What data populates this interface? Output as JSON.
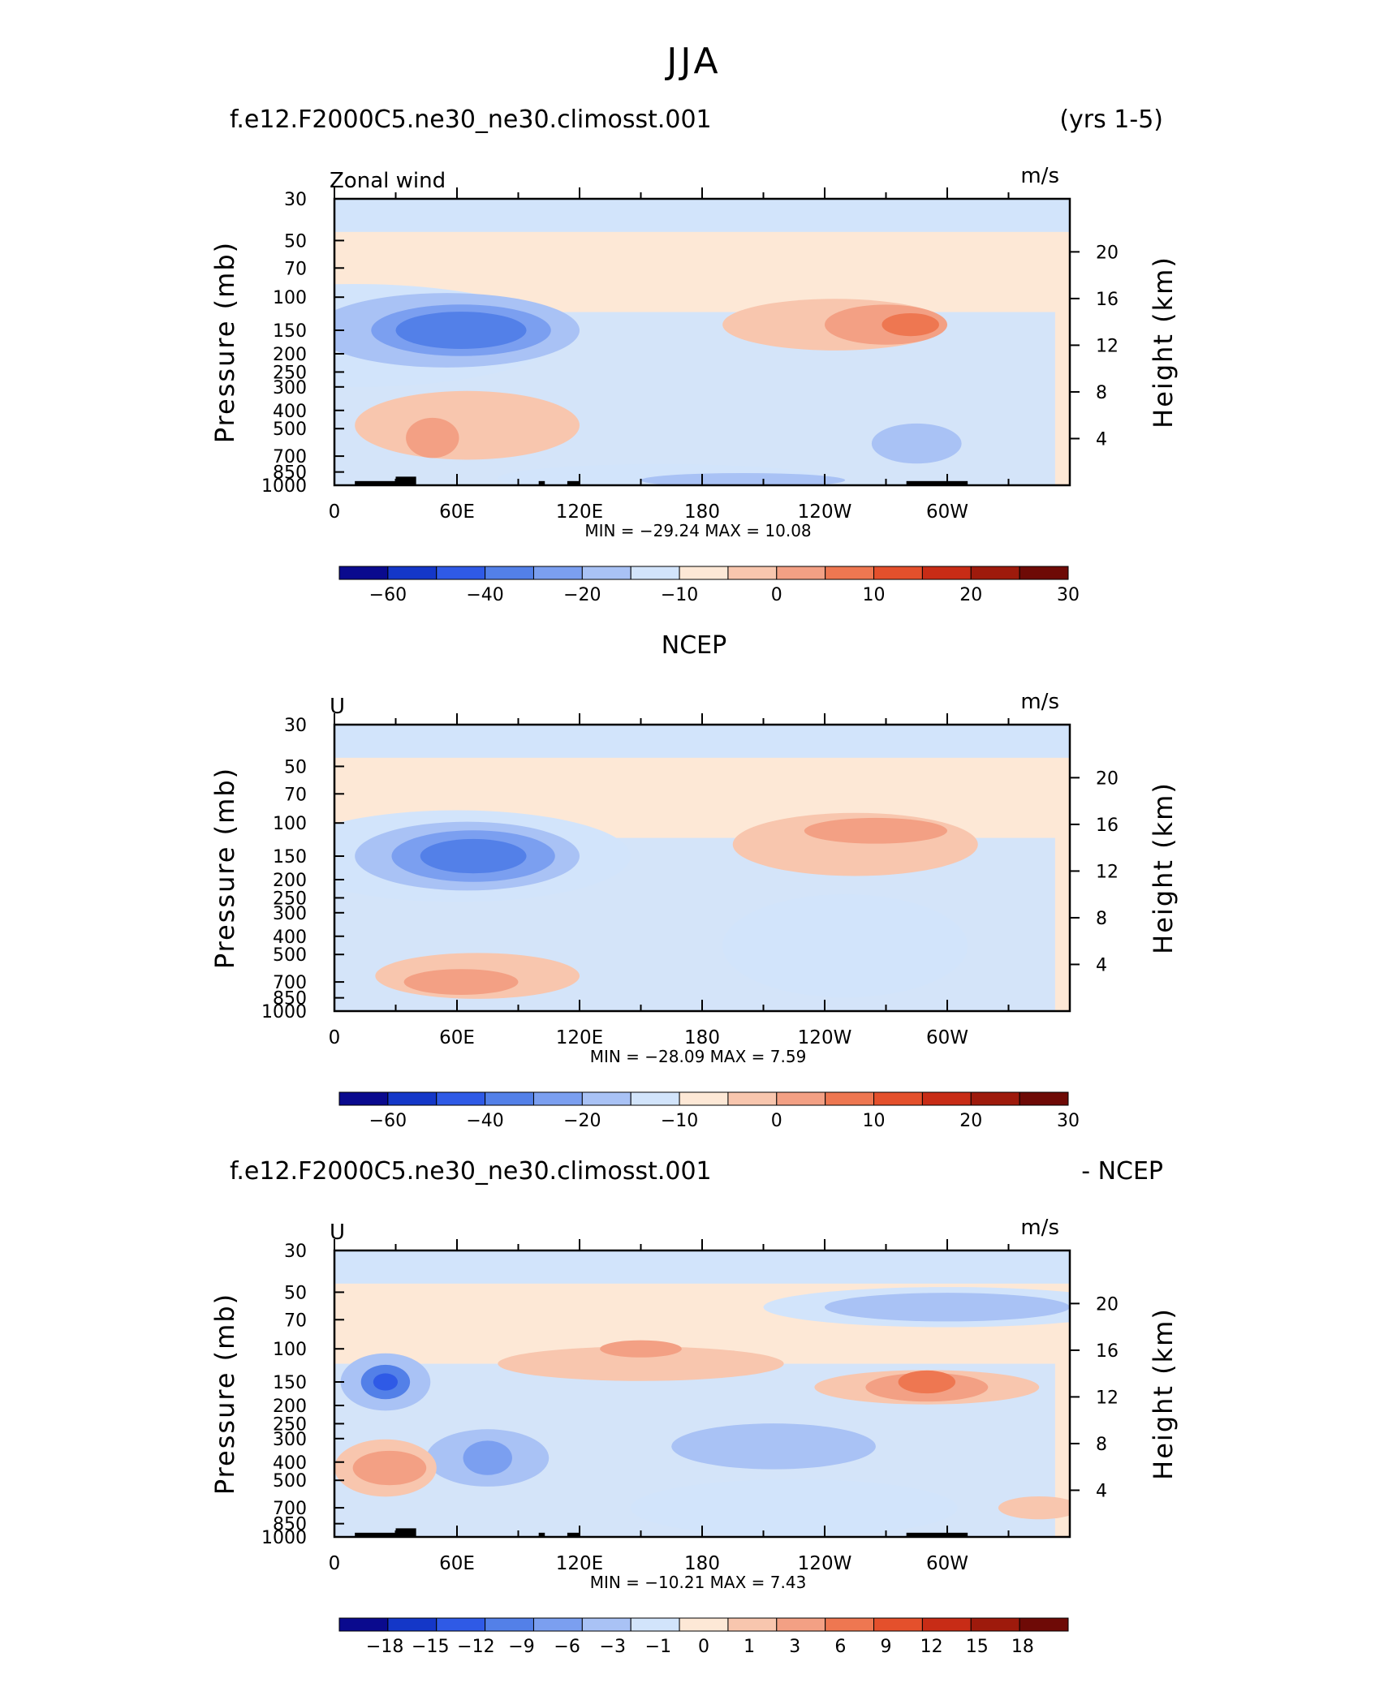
{
  "figure": {
    "season": "JJA"
  },
  "chart_data": [
    {
      "type": "heatmap",
      "panel": "model",
      "title_left": "f.e12.F2000C5.ne30_ne30.climosst.001",
      "title_right": "(yrs 1-5)",
      "variable_label": "Zonal wind",
      "units": "m/s",
      "xlabel": "",
      "ylabel": "Pressure (mb)",
      "ylabel_right": "Height (km)",
      "x_ticks": [
        "0",
        "60E",
        "120E",
        "180",
        "120W",
        "60W"
      ],
      "y_ticks": [
        "30",
        "50",
        "70",
        "100",
        "150",
        "200",
        "250",
        "300",
        "400",
        "500",
        "700",
        "850",
        "1000"
      ],
      "y_ticks_right": [
        "20",
        "16",
        "12",
        "8",
        "4"
      ],
      "stats_text": "MIN = −29.24   MAX =   10.08",
      "min": -29.24,
      "max": 10.08,
      "colorbar_labels": [
        "−60",
        "−40",
        "−20",
        "−10",
        "0",
        "10",
        "20",
        "30"
      ],
      "colorbar_levels": [
        -60,
        -50,
        -40,
        -30,
        -20,
        -15,
        -10,
        -5,
        0,
        5,
        10,
        15,
        20,
        25,
        30
      ]
    },
    {
      "type": "heatmap",
      "panel": "obs",
      "title_center": "NCEP",
      "variable_label": "U",
      "units": "m/s",
      "xlabel": "",
      "ylabel": "Pressure (mb)",
      "ylabel_right": "Height (km)",
      "x_ticks": [
        "0",
        "60E",
        "120E",
        "180",
        "120W",
        "60W"
      ],
      "y_ticks": [
        "30",
        "50",
        "70",
        "100",
        "150",
        "200",
        "250",
        "300",
        "400",
        "500",
        "700",
        "850",
        "1000"
      ],
      "y_ticks_right": [
        "20",
        "16",
        "12",
        "8",
        "4"
      ],
      "stats_text": "MIN = −28.09   MAX =    7.59",
      "min": -28.09,
      "max": 7.59,
      "colorbar_labels": [
        "−60",
        "−40",
        "−20",
        "−10",
        "0",
        "10",
        "20",
        "30"
      ],
      "colorbar_levels": [
        -60,
        -50,
        -40,
        -30,
        -20,
        -15,
        -10,
        -5,
        0,
        5,
        10,
        15,
        20,
        25,
        30
      ]
    },
    {
      "type": "heatmap",
      "panel": "difference",
      "title_left": "f.e12.F2000C5.ne30_ne30.climosst.001",
      "title_right": "- NCEP",
      "variable_label": "U",
      "units": "m/s",
      "xlabel": "",
      "ylabel": "Pressure (mb)",
      "ylabel_right": "Height (km)",
      "x_ticks": [
        "0",
        "60E",
        "120E",
        "180",
        "120W",
        "60W"
      ],
      "y_ticks": [
        "30",
        "50",
        "70",
        "100",
        "150",
        "200",
        "250",
        "300",
        "400",
        "500",
        "700",
        "850",
        "1000"
      ],
      "y_ticks_right": [
        "20",
        "16",
        "12",
        "8",
        "4"
      ],
      "stats_text": "MIN = −10.21   MAX =    7.43",
      "min": -10.21,
      "max": 7.43,
      "colorbar_labels": [
        "−18",
        "−15",
        "−12",
        "−9",
        "−6",
        "−3",
        "−1",
        "0",
        "1",
        "3",
        "6",
        "9",
        "12",
        "15",
        "18"
      ]
    }
  ],
  "palette": {
    "colorbar": [
      "#0a0a8e",
      "#1437c8",
      "#2f5ae6",
      "#5380e8",
      "#7b9ff0",
      "#a9c2f5",
      "#d2e4fb",
      "#fde8d6",
      "#f8c6ae",
      "#f3a084",
      "#ee7751",
      "#e4502c",
      "#c82c16",
      "#9e1a0c",
      "#6e0a06"
    ],
    "field_neg": [
      "#d2e4fb",
      "#a9c2f5",
      "#7b9ff0",
      "#5380e8",
      "#2f5ae6"
    ],
    "field_pos": [
      "#fde8d6",
      "#f8c6ae",
      "#f3a084",
      "#ee7751"
    ],
    "topography": "#000000",
    "frame": "#000000"
  }
}
